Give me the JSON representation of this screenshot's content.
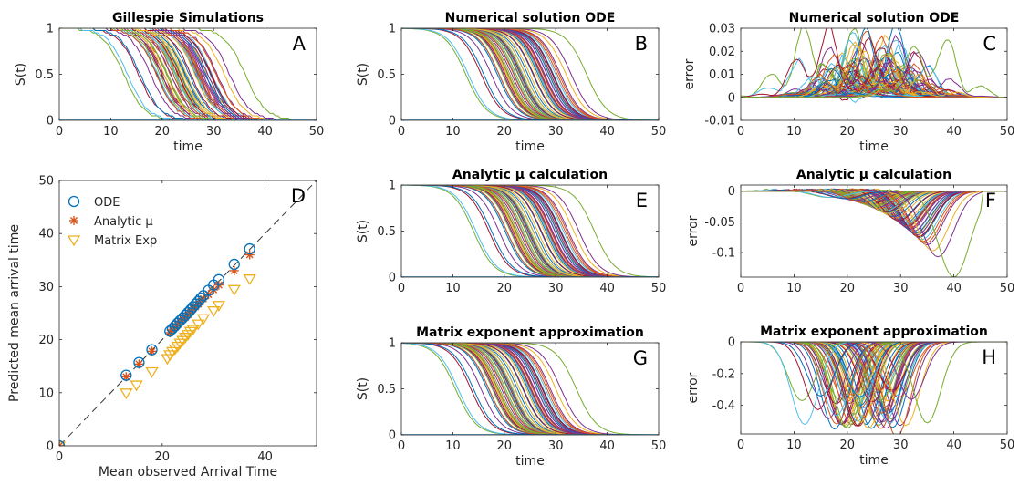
{
  "chart_data": [
    {
      "id": "A",
      "type": "line",
      "title": "Gillespie Simulations",
      "panel_label": "A",
      "xlabel": "time",
      "ylabel": "S(t)",
      "xlim": [
        0,
        50
      ],
      "ylim": [
        0,
        1
      ],
      "xticks": [
        "0",
        "10",
        "20",
        "30",
        "40",
        "50"
      ],
      "yticks": [
        "0",
        "0.5",
        "1"
      ],
      "curves": "many stochastic step-down curves from 1 to 0; midpoints spread from about 12 to 36"
    },
    {
      "id": "B",
      "type": "line",
      "title": "Numerical solution ODE",
      "panel_label": "B",
      "xlabel": "time",
      "ylabel": "S(t)",
      "xlim": [
        0,
        50
      ],
      "ylim": [
        0,
        1
      ],
      "xticks": [
        "0",
        "10",
        "20",
        "30",
        "40",
        "50"
      ],
      "yticks": [
        "0",
        "0.5",
        "1"
      ],
      "curves": "many smooth sigmoid curves from 1 to 0; midpoints spread from about 12 to 36"
    },
    {
      "id": "C",
      "type": "line",
      "title": "Numerical solution ODE",
      "panel_label": "C",
      "xlabel": "time",
      "ylabel": "error",
      "xlim": [
        0,
        50
      ],
      "ylim": [
        -0.01,
        0.03
      ],
      "xticks": [
        "0",
        "10",
        "20",
        "30",
        "40",
        "50"
      ],
      "yticks": [
        "-0.01",
        "0",
        "0.01",
        "0.02",
        "0.03"
      ],
      "curves": "noisy error curves near 0, peaking up to about 0.03 between time 20 and 35"
    },
    {
      "id": "D",
      "type": "scatter",
      "panel_label": "D",
      "xlabel": "Mean observed Arrival Time",
      "ylabel": "Predicted mean arrival time",
      "xlim": [
        0,
        50
      ],
      "ylim": [
        0,
        50
      ],
      "xticks": [
        "0",
        "20",
        "40"
      ],
      "yticks": [
        "0",
        "10",
        "20",
        "30",
        "40",
        "50"
      ],
      "legend_position": "top-left",
      "series": [
        {
          "name": "ODE",
          "marker": "circle",
          "color": "#0072BD",
          "x": [
            0,
            13,
            15.5,
            18,
            21.5,
            22,
            22.5,
            23,
            23.5,
            24,
            24.5,
            25,
            25.5,
            26,
            26.5,
            27,
            27.5,
            28,
            29,
            30,
            31,
            34,
            37
          ],
          "y": [
            0,
            13.3,
            15.7,
            18.1,
            21.6,
            22.1,
            22.6,
            23.1,
            23.6,
            24.1,
            24.6,
            25.1,
            25.6,
            26.2,
            26.7,
            27.2,
            27.8,
            28.3,
            29.3,
            30.3,
            31.3,
            34.2,
            37.1
          ]
        },
        {
          "name": "Analytic μ",
          "marker": "asterisk",
          "color": "#D95319",
          "x": [
            0,
            13,
            15.5,
            18,
            21.5,
            22,
            22.5,
            23,
            23.5,
            24,
            24.5,
            25,
            25.5,
            26,
            26.5,
            27,
            27.5,
            28,
            29,
            30,
            31,
            34,
            37
          ],
          "y": [
            0,
            13,
            15.4,
            17.8,
            21.3,
            21.8,
            22.3,
            22.8,
            23.3,
            23.8,
            24.2,
            24.7,
            25.2,
            25.8,
            26.2,
            26.7,
            27.2,
            27.7,
            28.5,
            29.4,
            30.3,
            33,
            36
          ]
        },
        {
          "name": "Matrix Exp",
          "marker": "triangle-down",
          "color": "#EDB120",
          "x": [
            0,
            13,
            15,
            18,
            21,
            21.5,
            22,
            22.5,
            23,
            23.5,
            24,
            24.5,
            25,
            25.5,
            26,
            27,
            28,
            30,
            31,
            34,
            37
          ],
          "y": [
            0,
            10,
            11.5,
            14,
            16.5,
            17.2,
            17.8,
            18.3,
            18.8,
            19.4,
            19.9,
            20.5,
            21,
            21.6,
            22,
            23,
            24,
            25.5,
            26.5,
            29.5,
            31.5
          ]
        }
      ],
      "reference_line": "dashed y = x"
    },
    {
      "id": "E",
      "type": "line",
      "title": "Analytic μ calculation",
      "panel_label": "E",
      "xlabel": "",
      "ylabel": "S(t)",
      "xlim": [
        0,
        50
      ],
      "ylim": [
        0,
        1
      ],
      "xticks": [
        "0",
        "10",
        "20",
        "30",
        "40",
        "50"
      ],
      "yticks": [
        "0",
        "0.5",
        "1"
      ],
      "curves": "many smooth sigmoid curves from 1 to 0; midpoints spread from about 17 to 36"
    },
    {
      "id": "F",
      "type": "line",
      "title": "Analytic μ calculation",
      "panel_label": "F",
      "xlabel": "",
      "ylabel": "error",
      "xlim": [
        0,
        50
      ],
      "ylim": [
        -0.14,
        0.01
      ],
      "xticks": [
        "0",
        "10",
        "20",
        "30",
        "40",
        "50"
      ],
      "yticks": [
        "-0.1",
        "-0.05",
        "0"
      ],
      "curves": "negative error dips reaching about -0.14 near time 33"
    },
    {
      "id": "G",
      "type": "line",
      "title": "Matrix exponent approximation",
      "panel_label": "G",
      "xlabel": "time",
      "ylabel": "S(t)",
      "xlim": [
        0,
        50
      ],
      "ylim": [
        0,
        1
      ],
      "xticks": [
        "0",
        "10",
        "20",
        "30",
        "40",
        "50"
      ],
      "yticks": [
        "0",
        "0.5",
        "1"
      ],
      "curves": "many smooth sigmoid curves from 1 to 0; midpoints spread from about 8 to 32"
    },
    {
      "id": "H",
      "type": "line",
      "title": "Matrix exponent approximation",
      "panel_label": "H",
      "xlabel": "time",
      "ylabel": "error",
      "xlim": [
        0,
        50
      ],
      "ylim": [
        -0.58,
        0
      ],
      "xticks": [
        "0",
        "10",
        "20",
        "30",
        "40",
        "50"
      ],
      "yticks": [
        "-0.4",
        "-0.2",
        "0"
      ],
      "curves": "negative error dips reaching about -0.58 between time 10 and 35"
    }
  ],
  "palette": [
    "#0072BD",
    "#D95319",
    "#EDB120",
    "#7E2F8E",
    "#77AC30",
    "#4DBEEE",
    "#A2142F"
  ]
}
